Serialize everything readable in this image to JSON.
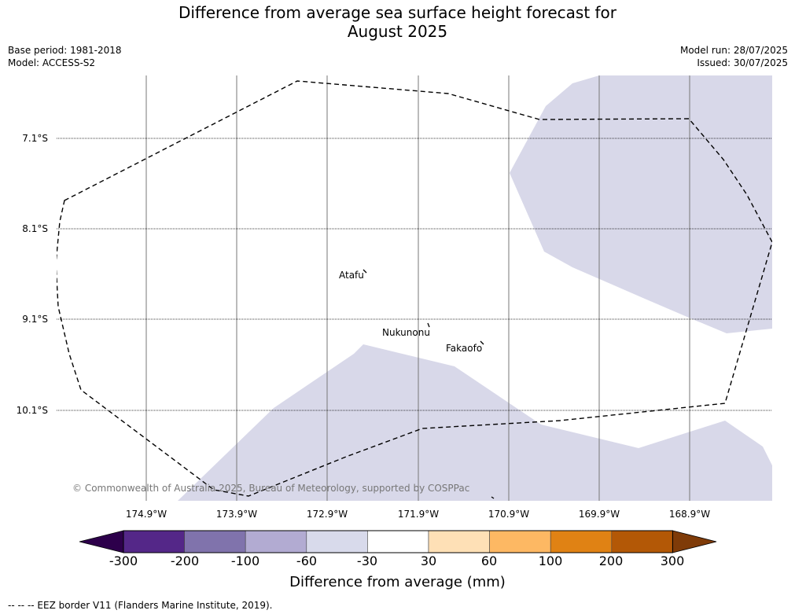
{
  "header": {
    "title_line1": "Difference from average sea surface height forecast for",
    "title_line2": "August 2025",
    "base_period": "Base period: 1981-2018",
    "model": "Model: ACCESS-S2",
    "model_run": "Model run: 28/07/2025",
    "issued": "Issued: 30/07/2025"
  },
  "map": {
    "lat_labels": [
      "7.1°S",
      "8.1°S",
      "9.1°S",
      "10.1°S"
    ],
    "lon_labels": [
      "174.9°W",
      "173.9°W",
      "172.9°W",
      "171.9°W",
      "170.9°W",
      "169.9°W",
      "168.9°W"
    ],
    "places": [
      "Atafu",
      "Nukunonu",
      "Fakaofo"
    ],
    "copyright": "© Commonwealth of Australia 2025, Bureau of Meteorology, supported by COSPPac",
    "shading_colors": {
      "sea": "#ffffff",
      "anomaly_minus60_to_minus30": "#d8d8e9"
    }
  },
  "colorbar": {
    "title": "Difference from average (mm)",
    "tick_labels": [
      "-300",
      "-200",
      "-100",
      "-60",
      "-30",
      "30",
      "60",
      "100",
      "200",
      "300"
    ],
    "colors": {
      "below_min": "#2d004b",
      "segments": [
        "#542788",
        "#8073ac",
        "#b2abd2",
        "#d8daeb",
        "#ffffff",
        "#fee0b6",
        "#fdb863",
        "#e08214",
        "#b35806"
      ],
      "above_max": "#7f3b08"
    }
  },
  "footnote": "--  --  -- EEZ border V11 (Flanders Marine Institute, 2019)."
}
